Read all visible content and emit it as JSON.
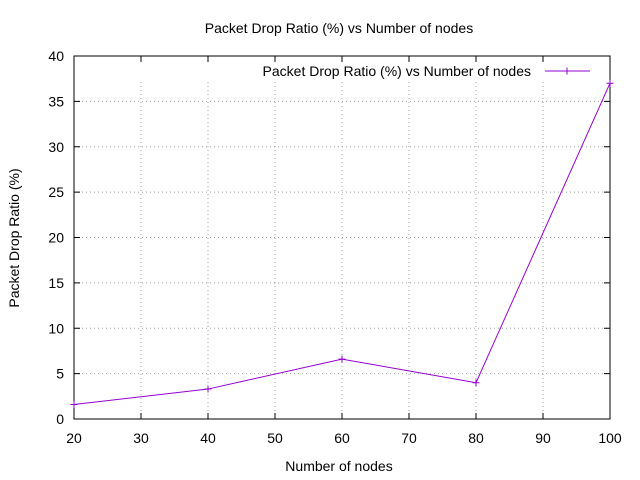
{
  "chart_data": {
    "type": "line",
    "title": "Packet Drop Ratio (%) vs Number of nodes",
    "xlabel": "Number of nodes",
    "ylabel": "Packet Drop Ratio (%)",
    "xlim": [
      20,
      100
    ],
    "ylim": [
      0,
      40
    ],
    "xticks": [
      20,
      30,
      40,
      50,
      60,
      70,
      80,
      90,
      100
    ],
    "yticks": [
      0,
      5,
      10,
      15,
      20,
      25,
      30,
      35,
      40
    ],
    "grid": true,
    "legend_position": "top-right",
    "series": [
      {
        "name": "Packet Drop Ratio (%) vs Number of nodes",
        "color": "#9400d3",
        "marker": "plus",
        "x": [
          20,
          40,
          60,
          80,
          100
        ],
        "y": [
          1.6,
          3.3,
          6.6,
          4.0,
          37.0
        ]
      }
    ]
  }
}
